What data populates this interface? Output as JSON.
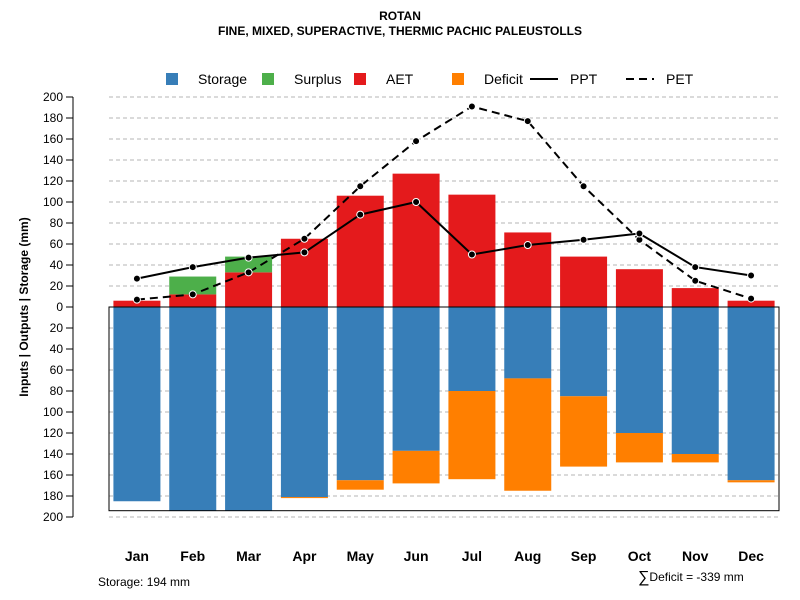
{
  "chart_data": {
    "type": "bar",
    "title": "ROTAN",
    "subtitle": "FINE, MIXED, SUPERACTIVE, THERMIC PACHIC PALEUSTOLLS",
    "ylabel": "Inputs | Outputs | Storage     (mm)",
    "ylim": [
      -200,
      200
    ],
    "y_ticks": [
      200,
      180,
      160,
      140,
      120,
      100,
      80,
      60,
      40,
      20,
      0,
      20,
      40,
      60,
      80,
      100,
      120,
      140,
      160,
      180,
      200
    ],
    "categories": [
      "Jan",
      "Feb",
      "Mar",
      "Apr",
      "May",
      "Jun",
      "Jul",
      "Aug",
      "Sep",
      "Oct",
      "Nov",
      "Dec"
    ],
    "legend": {
      "placement": "top",
      "items": [
        {
          "label": "Storage",
          "kind": "box",
          "color": "#377eb8"
        },
        {
          "label": "Surplus",
          "kind": "box",
          "color": "#4daf4a"
        },
        {
          "label": "AET",
          "kind": "box",
          "color": "#e41a1c"
        },
        {
          "label": "Deficit",
          "kind": "box",
          "color": "#ff7f00"
        },
        {
          "label": "PPT",
          "kind": "solid-line",
          "color": "#000000"
        },
        {
          "label": "PET",
          "kind": "dashed-line",
          "color": "#000000"
        }
      ]
    },
    "series": [
      {
        "name": "AET",
        "color": "#e41a1c",
        "values": [
          6,
          12,
          33,
          65,
          106,
          127,
          107,
          71,
          48,
          36,
          18,
          6
        ]
      },
      {
        "name": "Surplus",
        "color": "#4daf4a",
        "values": [
          0,
          17,
          15,
          0,
          0,
          0,
          0,
          0,
          0,
          0,
          0,
          0
        ]
      },
      {
        "name": "Storage",
        "color": "#377eb8",
        "values": [
          185,
          194,
          194,
          181,
          165,
          137,
          80,
          68,
          85,
          120,
          140,
          165
        ]
      },
      {
        "name": "Deficit",
        "color": "#ff7f00",
        "values": [
          0,
          0,
          0,
          1,
          9,
          31,
          84,
          107,
          67,
          28,
          8,
          2
        ]
      },
      {
        "name": "PPT",
        "color": "#000000",
        "values": [
          27,
          38,
          47,
          52,
          88,
          100,
          50,
          59,
          64,
          70,
          38,
          30
        ]
      },
      {
        "name": "PET",
        "color": "#000000",
        "values": [
          7,
          12,
          33,
          65,
          115,
          158,
          191,
          177,
          115,
          64,
          25,
          8
        ]
      }
    ],
    "storage_capacity": 194,
    "grid": true
  },
  "footer": {
    "storage_text": "Storage: 194 mm",
    "deficit_sigma": "∑",
    "deficit_text": "Deficit = -339 mm"
  }
}
